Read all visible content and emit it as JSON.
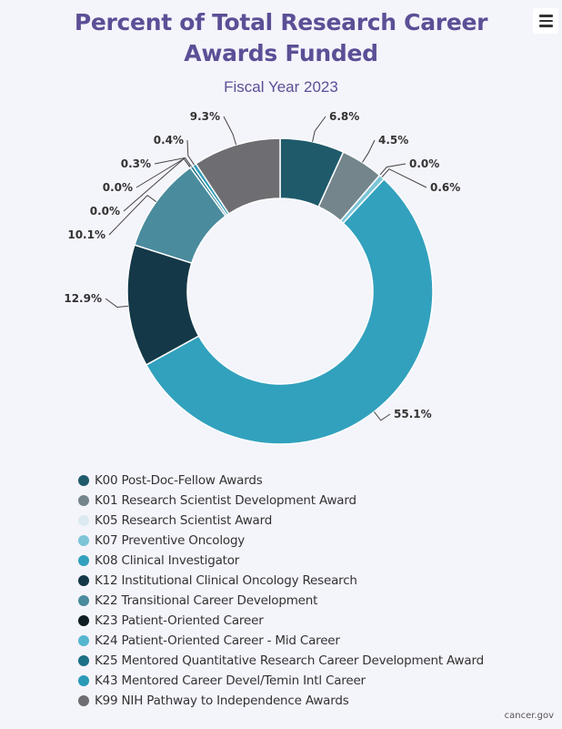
{
  "chart_data": {
    "type": "pie",
    "title_lines": [
      "Percent of Total Research Career",
      "Awards Funded"
    ],
    "subtitle": "Fiscal Year 2023",
    "legend_position": "bottom",
    "slices": [
      {
        "name": "K00 Post-Doc-Fellow Awards",
        "value": 6.8,
        "label": "6.8%",
        "color": "#1f5a6b"
      },
      {
        "name": "K01 Research Scientist Development Award",
        "value": 4.5,
        "label": "4.5%",
        "color": "#74858c"
      },
      {
        "name": "K05 Research Scientist Award",
        "value": 0.0,
        "label": "0.0%",
        "color": "#dbeaf0"
      },
      {
        "name": "K07 Preventive Oncology",
        "value": 0.6,
        "label": "0.6%",
        "color": "#7cc5d8"
      },
      {
        "name": "K08 Clinical Investigator",
        "value": 55.1,
        "label": "55.1%",
        "color": "#32a1bd"
      },
      {
        "name": "K12 Institutional Clinical Oncology Research",
        "value": 12.9,
        "label": "12.9%",
        "color": "#143847"
      },
      {
        "name": "K22 Transitional Career Development",
        "value": 10.1,
        "label": "10.1%",
        "color": "#4a8b9d"
      },
      {
        "name": "K23 Patient-Oriented Career",
        "value": 0.0,
        "label": "0.0%",
        "color": "#0f1d22"
      },
      {
        "name": "K24 Patient-Oriented Career - Mid Career",
        "value": 0.0,
        "label": "0.0%",
        "color": "#55b6d0"
      },
      {
        "name": "K25 Mentored Quantitative Research Career Development Award",
        "value": 0.3,
        "label": "0.3%",
        "color": "#1c6f84"
      },
      {
        "name": "K43 Mentored Career Devel/Temin Intl Career",
        "value": 0.4,
        "label": "0.4%",
        "color": "#2a9ab7"
      },
      {
        "name": "K99 NIH Pathway to Independence Awards",
        "value": 9.3,
        "label": "9.3%",
        "color": "#6e6d71"
      }
    ]
  },
  "credit": "cancer.gov",
  "colors": {
    "title": "#5b4f96",
    "background": "#f4f4fb"
  }
}
